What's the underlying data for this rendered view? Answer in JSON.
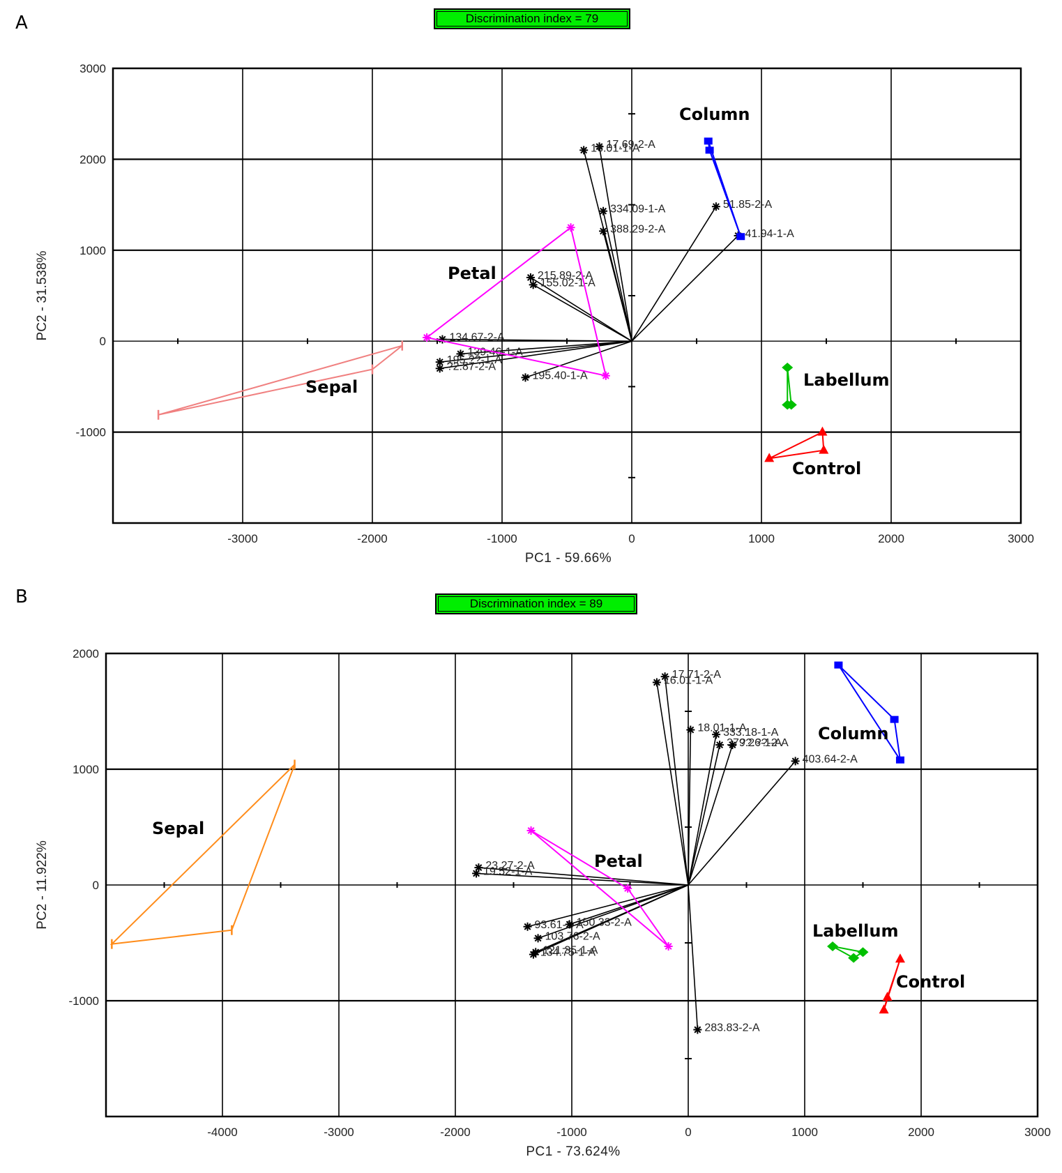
{
  "chart_data": [
    {
      "type": "scatter",
      "panel_label": "A",
      "badge": "Discrimination index = 79",
      "xlabel": "PC1 - 59.66%",
      "ylabel": "PC2 - 31.538%",
      "xlim": [
        -4000,
        3000
      ],
      "ylim": [
        -2000,
        3000
      ],
      "xticks": [
        -3000,
        -2000,
        -1000,
        0,
        1000,
        2000,
        3000
      ],
      "yticks": [
        -1000,
        0,
        1000,
        2000,
        3000
      ],
      "grid": true,
      "groups": [
        {
          "name": "Sepal",
          "color": "#f08080",
          "marker": "bar",
          "points": [
            [
              -3650,
              -810
            ],
            [
              -2000,
              -310
            ],
            [
              -1770,
              -50
            ]
          ]
        },
        {
          "name": "Petal",
          "color": "#ff00ff",
          "marker": "star",
          "points": [
            [
              -1580,
              40
            ],
            [
              -470,
              1250
            ],
            [
              -200,
              -380
            ]
          ]
        },
        {
          "name": "Column",
          "color": "#0000ff",
          "marker": "square",
          "points": [
            [
              590,
              2200
            ],
            [
              600,
              2100
            ],
            [
              840,
              1150
            ]
          ]
        },
        {
          "name": "Labellum",
          "color": "#00c000",
          "marker": "diamond",
          "points": [
            [
              1200,
              -290
            ],
            [
              1200,
              -700
            ],
            [
              1230,
              -700
            ]
          ]
        },
        {
          "name": "Control",
          "color": "#ff0000",
          "marker": "triangle",
          "points": [
            [
              1470,
              -1000
            ],
            [
              1480,
              -1200
            ],
            [
              1060,
              -1290
            ]
          ]
        }
      ],
      "loadings": [
        {
          "label": "17.69-2-A",
          "x": -250,
          "y": 2140
        },
        {
          "label": "16.01-1-A",
          "x": -370,
          "y": 2100
        },
        {
          "label": "334.09-1-A",
          "x": -220,
          "y": 1430
        },
        {
          "label": "388.29-2-A",
          "x": -220,
          "y": 1210
        },
        {
          "label": "51.85-2-A",
          "x": 650,
          "y": 1480
        },
        {
          "label": "41.94-1-A",
          "x": 820,
          "y": 1160
        },
        {
          "label": "215.89-2-A",
          "x": -780,
          "y": 700
        },
        {
          "label": "155.02-1-A",
          "x": -760,
          "y": 620
        },
        {
          "label": "134.67-2-A",
          "x": -1460,
          "y": 20
        },
        {
          "label": "139.46-1-A",
          "x": -1320,
          "y": -140
        },
        {
          "label": "195.40-1-A",
          "x": -820,
          "y": -400
        },
        {
          "label": "195.??-1-A",
          "x": -1480,
          "y": -230
        },
        {
          "label": "?2.87-2-A",
          "x": -1480,
          "y": -300
        }
      ]
    },
    {
      "type": "scatter",
      "panel_label": "B",
      "badge": "Discrimination index = 89",
      "xlabel": "PC1 - 73.624%",
      "ylabel": "PC2 - 11.922%",
      "xlim": [
        -5000,
        3000
      ],
      "ylim": [
        -2000,
        2000
      ],
      "xticks": [
        -4000,
        -3000,
        -2000,
        -1000,
        0,
        1000,
        2000,
        3000
      ],
      "yticks": [
        -1000,
        0,
        1000,
        2000
      ],
      "grid": true,
      "groups": [
        {
          "name": "Sepal",
          "color": "#ff8c1a",
          "marker": "bar",
          "points": [
            [
              -4950,
              -510
            ],
            [
              -3380,
              1040
            ],
            [
              -3920,
              -390
            ]
          ]
        },
        {
          "name": "Petal",
          "color": "#ff00ff",
          "marker": "star",
          "points": [
            [
              -1350,
              470
            ],
            [
              -520,
              -30
            ],
            [
              -170,
              -530
            ]
          ]
        },
        {
          "name": "Column",
          "color": "#0000ff",
          "marker": "square",
          "points": [
            [
              1290,
              1900
            ],
            [
              1770,
              1430
            ],
            [
              1820,
              1080
            ]
          ]
        },
        {
          "name": "Labellum",
          "color": "#00c000",
          "marker": "diamond",
          "points": [
            [
              1240,
              -530
            ],
            [
              1420,
              -630
            ],
            [
              1500,
              -580
            ]
          ]
        },
        {
          "name": "Control",
          "color": "#ff0000",
          "marker": "triangle",
          "points": [
            [
              1820,
              -640
            ],
            [
              1710,
              -970
            ],
            [
              1680,
              -1080
            ]
          ]
        }
      ],
      "loadings": [
        {
          "label": "17.71-2-A",
          "x": -200,
          "y": 1800
        },
        {
          "label": "16.01-1-A",
          "x": -270,
          "y": 1750
        },
        {
          "label": "18.01-1-A",
          "x": 20,
          "y": 1340
        },
        {
          "label": "333.18-1-A",
          "x": 240,
          "y": 1300
        },
        {
          "label": "379.26-1-A",
          "x": 270,
          "y": 1210
        },
        {
          "label": "??.??-2-A",
          "x": 380,
          "y": 1210
        },
        {
          "label": "403.64-2-A",
          "x": 920,
          "y": 1070
        },
        {
          "label": "23.27-2-A",
          "x": -1800,
          "y": 150
        },
        {
          "label": "19.52-1-A",
          "x": -1820,
          "y": 100
        },
        {
          "label": "93.61-1-A",
          "x": -1380,
          "y": -360
        },
        {
          "label": "150.33-2-A",
          "x": -1020,
          "y": -340
        },
        {
          "label": "103.76-2-A",
          "x": -1290,
          "y": -460
        },
        {
          "label": "121.35-1-A",
          "x": -1310,
          "y": -580
        },
        {
          "label": "134.75-1-A",
          "x": -1330,
          "y": -600
        },
        {
          "label": "283.83-2-A",
          "x": 80,
          "y": -1250
        }
      ]
    }
  ]
}
